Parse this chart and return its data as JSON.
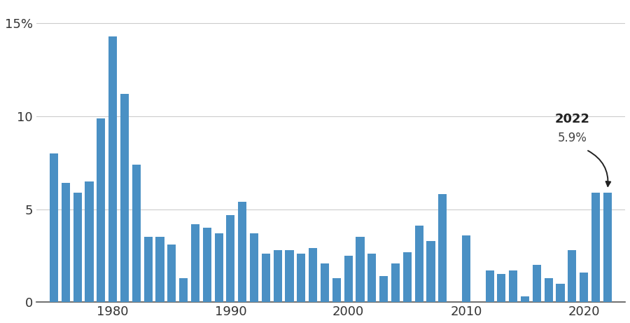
{
  "years": [
    1975,
    1976,
    1977,
    1978,
    1979,
    1980,
    1981,
    1982,
    1983,
    1984,
    1985,
    1986,
    1987,
    1988,
    1989,
    1990,
    1991,
    1992,
    1993,
    1994,
    1995,
    1996,
    1997,
    1998,
    1999,
    2000,
    2001,
    2002,
    2003,
    2004,
    2005,
    2006,
    2007,
    2008,
    2009,
    2010,
    2011,
    2012,
    2013,
    2014,
    2015,
    2016,
    2017,
    2018,
    2019,
    2020,
    2021,
    2022
  ],
  "values": [
    8.0,
    6.4,
    5.9,
    6.5,
    9.9,
    14.3,
    11.2,
    7.4,
    3.5,
    3.5,
    3.1,
    1.3,
    4.2,
    4.0,
    3.7,
    4.7,
    5.4,
    3.7,
    2.6,
    2.8,
    2.8,
    2.6,
    2.9,
    2.1,
    1.3,
    2.5,
    3.5,
    2.6,
    1.4,
    2.1,
    2.7,
    4.1,
    3.3,
    5.8,
    0.0,
    3.6,
    0.0,
    1.7,
    1.5,
    1.7,
    0.3,
    2.0,
    1.3,
    1.0,
    2.8,
    1.6,
    5.9,
    5.9
  ],
  "bar_color": "#4a90c4",
  "annotation_label": "2022",
  "annotation_value": "5.9%",
  "annotation_year": 2022,
  "annotation_value_num": 5.9,
  "yticks": [
    0,
    5,
    10,
    15
  ],
  "ytick_labels": [
    "0",
    "5",
    "10",
    "15%"
  ],
  "xtick_years": [
    1980,
    1990,
    2000,
    2010,
    2020
  ],
  "ylim": [
    0,
    16
  ],
  "background_color": "#ffffff",
  "grid_color": "#cccccc"
}
